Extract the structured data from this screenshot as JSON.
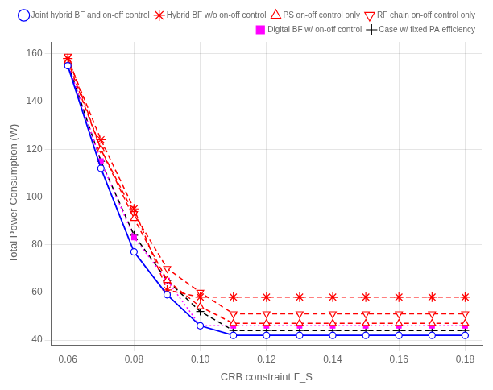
{
  "chart_data": {
    "type": "line",
    "x": [
      0.06,
      0.07,
      0.08,
      0.09,
      0.1,
      0.11,
      0.12,
      0.13,
      0.14,
      0.15,
      0.16,
      0.17,
      0.18
    ],
    "series": [
      {
        "name": "Joint hybrid BF and on-off control",
        "color": "#0000FF",
        "marker": "circle",
        "line_style": "solid",
        "values": [
          155,
          112,
          77,
          59,
          46,
          42,
          42,
          42,
          42,
          42,
          42,
          42,
          42
        ]
      },
      {
        "name": "Hybrid BF w/o on-off control",
        "color": "#FF0000",
        "marker": "star",
        "line_style": "dashed",
        "values": [
          158,
          124,
          95,
          61,
          58,
          58,
          58,
          58,
          58,
          58,
          58,
          58,
          58
        ]
      },
      {
        "name": "PS on-off control only",
        "color": "#FF0000",
        "marker": "triangle-up",
        "line_style": "dashed",
        "values": [
          157,
          120,
          91,
          65,
          54,
          47,
          47,
          47,
          47,
          47,
          47,
          47,
          47
        ]
      },
      {
        "name": "RF chain on-off control only",
        "color": "#FF0000",
        "marker": "triangle-down",
        "line_style": "dashed",
        "values": [
          159,
          120,
          93,
          70,
          60,
          51,
          51,
          51,
          51,
          51,
          51,
          51,
          51
        ]
      },
      {
        "name": "Digital BF w/ on-off control",
        "color": "#FF00FF",
        "marker": "square",
        "line_style": "dotted",
        "values": [
          156,
          115,
          83,
          65,
          46,
          46,
          46,
          46,
          46,
          46,
          46,
          46,
          46
        ]
      },
      {
        "name": "Case w/ fixed PA efficiency",
        "color": "#000000",
        "marker": "plus",
        "line_style": "dashed",
        "values": [
          156,
          115,
          84,
          65,
          52,
          44,
          44,
          44,
          44,
          44,
          44,
          44,
          44
        ]
      }
    ],
    "x_label": "CRB constraint Γ_S",
    "y_label": "Total Power Consumption (W)",
    "xlim": [
      0.055,
      0.185
    ],
    "ylim": [
      38,
      165
    ],
    "xticks": [
      0.06,
      0.08,
      {
        "value": 0.1,
        "label": "0.10"
      },
      0.12,
      0.14,
      0.16,
      0.18
    ],
    "yticks": [
      40,
      60,
      80,
      100,
      120,
      140,
      160
    ],
    "grid": true,
    "legend": "upper right"
  }
}
